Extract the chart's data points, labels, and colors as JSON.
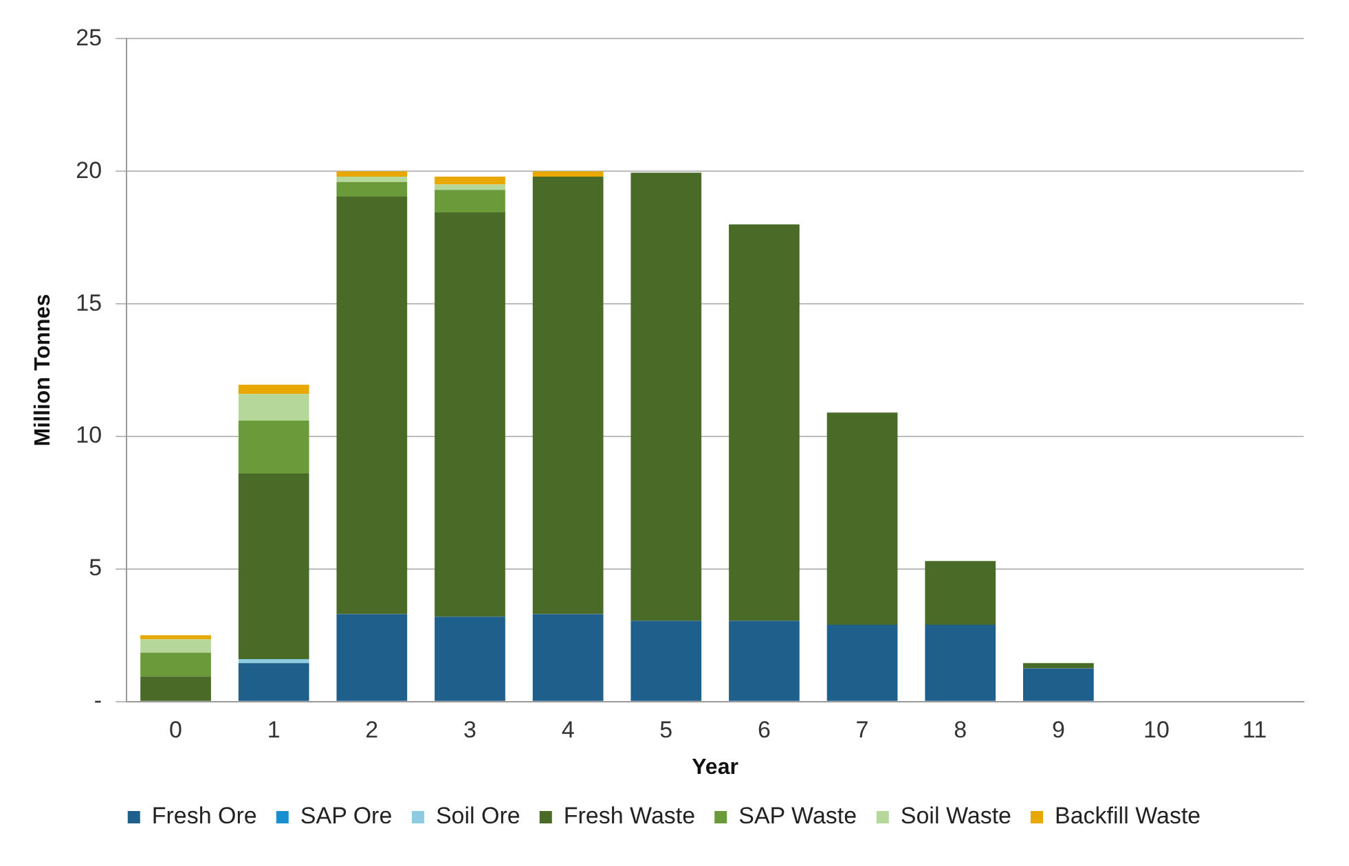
{
  "chart_data": {
    "type": "bar",
    "stacked": true,
    "xlabel": "Year",
    "ylabel": "Million Tonnes",
    "categories": [
      "0",
      "1",
      "2",
      "3",
      "4",
      "5",
      "6",
      "7",
      "8",
      "9",
      "10",
      "11"
    ],
    "series": [
      {
        "name": "Fresh Ore",
        "color": "#1f5f8b",
        "values": [
          0,
          1.45,
          3.3,
          3.2,
          3.3,
          3.05,
          3.05,
          2.9,
          2.9,
          1.25,
          0,
          0
        ]
      },
      {
        "name": "SAP Ore",
        "color": "#1a8fd0",
        "values": [
          0,
          0,
          0,
          0,
          0,
          0,
          0,
          0,
          0,
          0,
          0,
          0
        ]
      },
      {
        "name": "Soil Ore",
        "color": "#8ccbe0",
        "values": [
          0,
          0.15,
          0,
          0,
          0,
          0,
          0,
          0,
          0,
          0,
          0,
          0
        ]
      },
      {
        "name": "Fresh Waste",
        "color": "#4a6b28",
        "values": [
          0.95,
          7.0,
          15.75,
          15.25,
          16.5,
          16.9,
          14.95,
          8.0,
          2.4,
          0.2,
          0,
          0
        ]
      },
      {
        "name": "SAP Waste",
        "color": "#6a9a3a",
        "values": [
          0.9,
          2.0,
          0.55,
          0.85,
          0,
          0,
          0,
          0,
          0,
          0,
          0,
          0
        ]
      },
      {
        "name": "Soil Waste",
        "color": "#b5d79a",
        "values": [
          0.5,
          1.0,
          0.2,
          0.2,
          0,
          0,
          0,
          0,
          0,
          0,
          0,
          0
        ]
      },
      {
        "name": "Backfill Waste",
        "color": "#e8a800",
        "values": [
          0.15,
          0.35,
          0.2,
          0.3,
          0.2,
          0,
          0,
          0,
          0,
          0,
          0,
          0
        ]
      }
    ],
    "ylim": [
      0,
      25
    ],
    "yticks": [
      {
        "value": 0,
        "label": "-"
      },
      5,
      10,
      15,
      20,
      25
    ],
    "grid": "y",
    "legend": "bottom"
  }
}
